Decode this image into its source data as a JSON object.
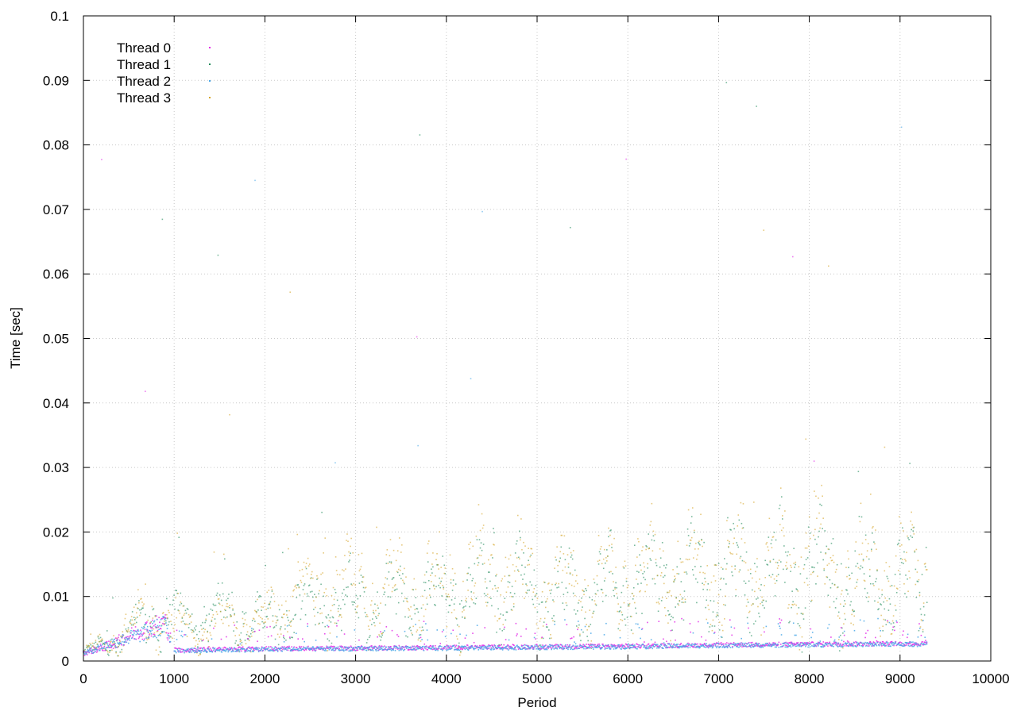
{
  "chart_data": {
    "type": "scatter",
    "title": "",
    "xlabel": "Period",
    "ylabel": "Time [sec]",
    "xlim": [
      0,
      10000
    ],
    "ylim": [
      0,
      0.1
    ],
    "xticks": [
      0,
      1000,
      2000,
      3000,
      4000,
      5000,
      6000,
      7000,
      8000,
      9000,
      10000
    ],
    "yticks": [
      0,
      0.01,
      0.02,
      0.03,
      0.04,
      0.05,
      0.06,
      0.07,
      0.08,
      0.09,
      0.1
    ],
    "xtick_labels": [
      "0",
      "1000",
      "2000",
      "3000",
      "4000",
      "5000",
      "6000",
      "7000",
      "8000",
      "9000",
      "10000"
    ],
    "ytick_labels": [
      "0",
      "0.01",
      "0.02",
      "0.03",
      "0.04",
      "0.05",
      "0.06",
      "0.07",
      "0.08",
      "0.09",
      "0.1"
    ],
    "grid": true,
    "legend_position": "top-left",
    "series": [
      {
        "name": "Thread 0",
        "color": "#e32de8",
        "x": [
          0,
          300,
          600,
          900,
          1000,
          1100,
          1500,
          2000,
          3000,
          4000,
          5000,
          6000,
          7000,
          8000,
          9000,
          9300
        ],
        "y_median": [
          0.0012,
          0.0025,
          0.0045,
          0.006,
          0.0017,
          0.0017,
          0.0018,
          0.0019,
          0.002,
          0.0021,
          0.0022,
          0.0023,
          0.0025,
          0.0026,
          0.0027,
          0.0027
        ]
      },
      {
        "name": "Thread 1",
        "color": "#1f8a5a",
        "x": [
          0,
          300,
          600,
          900,
          1200,
          1500,
          2000,
          2300,
          3000,
          4000,
          4600,
          5000,
          6000,
          6500,
          7000,
          8000,
          8300,
          9000,
          9300
        ],
        "y_median": [
          0.0012,
          0.0028,
          0.0055,
          0.007,
          0.006,
          0.0075,
          0.006,
          0.008,
          0.009,
          0.01,
          0.012,
          0.01,
          0.011,
          0.013,
          0.013,
          0.014,
          0.013,
          0.012,
          0.012
        ]
      },
      {
        "name": "Thread 2",
        "color": "#4aa8e8",
        "x": [
          0,
          300,
          600,
          900,
          1000,
          1100,
          1500,
          2000,
          3000,
          4000,
          5000,
          6000,
          7000,
          8000,
          9000,
          9300
        ],
        "y_median": [
          0.0012,
          0.0027,
          0.004,
          0.0055,
          0.0016,
          0.0016,
          0.0017,
          0.0018,
          0.0019,
          0.002,
          0.0021,
          0.0022,
          0.0024,
          0.0025,
          0.0026,
          0.0026
        ]
      },
      {
        "name": "Thread 3",
        "color": "#d6a52a",
        "x": [
          0,
          300,
          600,
          900,
          1200,
          1500,
          2000,
          2300,
          3000,
          4000,
          4600,
          5000,
          6000,
          6500,
          7000,
          8000,
          8300,
          9000,
          9300
        ],
        "y_median": [
          0.0012,
          0.003,
          0.006,
          0.0065,
          0.005,
          0.0055,
          0.0058,
          0.01,
          0.011,
          0.011,
          0.014,
          0.011,
          0.012,
          0.014,
          0.014,
          0.015,
          0.013,
          0.013,
          0.013
        ]
      }
    ]
  }
}
